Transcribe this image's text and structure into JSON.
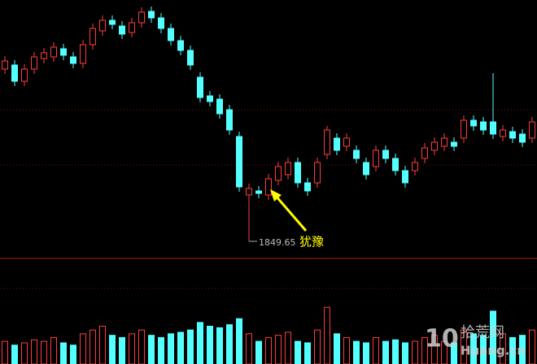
{
  "chart_data": {
    "type": "candlestick",
    "up_color": "#ff3c3c",
    "down_color": "#54ffff",
    "ylim": [
      1830,
      2295
    ],
    "volume_ylim": [
      0,
      100
    ],
    "open": [
      2167.5,
      2175,
      2145,
      2167.5,
      2187,
      2190,
      2205,
      2190,
      2178,
      2212.5,
      2238,
      2257.5,
      2247,
      2235,
      2253,
      2274,
      2262,
      2242.5,
      2220,
      2202,
      2152.5,
      2118,
      2112,
      2092.5,
      2043,
      1935,
      1942.5,
      1935,
      1962,
      1972.5,
      1995,
      1957.5,
      1957.5,
      2010,
      2040,
      2025,
      2017.5,
      1995,
      1987.5,
      2017.5,
      2002.5,
      1980,
      1980,
      2002.5,
      2017.5,
      2025,
      2032.5,
      2040,
      2073,
      2070,
      2070,
      2043,
      2052,
      2047.5,
      2040
    ],
    "high": [
      2191.5,
      2184,
      2176.5,
      2199,
      2206.5,
      2217,
      2214,
      2199,
      2221.5,
      2251.5,
      2266.5,
      2266.5,
      2256,
      2262,
      2281.5,
      2283,
      2271,
      2251.5,
      2229,
      2211,
      2161.5,
      2127,
      2121,
      2101.5,
      2052,
      1956,
      1951.5,
      1974,
      1996.5,
      2004,
      2004,
      1966.5,
      2004,
      2062.5,
      2049,
      2049,
      2026.5,
      2004,
      2026.5,
      2026.5,
      2011.5,
      1989,
      2004,
      2031,
      2041.5,
      2049,
      2041.5,
      2082,
      2082,
      2079,
      2160,
      2064,
      2061,
      2056.5,
      2079
    ],
    "low": [
      2158.5,
      2136,
      2136,
      2158.5,
      2178,
      2181,
      2184,
      2169,
      2169,
      2203.5,
      2229,
      2241,
      2223,
      2226,
      2244,
      2253,
      2233.5,
      2211,
      2193,
      2166,
      2106,
      2098.5,
      2076,
      2046,
      1941,
      1849.65,
      1929,
      1926,
      1953,
      1963.5,
      1948.5,
      1933.5,
      1948.5,
      2001,
      2008.5,
      2016,
      1993.5,
      1963.5,
      1978.5,
      1993.5,
      1971,
      1948.5,
      1971,
      1993.5,
      2008.5,
      2016,
      2016,
      2031,
      2053.5,
      2046,
      2038.5,
      2034,
      2031,
      2023.5,
      2031
    ],
    "close": [
      2182.5,
      2145,
      2167.5,
      2190,
      2197.5,
      2208,
      2193,
      2178,
      2212.5,
      2242.5,
      2257.5,
      2250,
      2232,
      2253,
      2272.5,
      2262,
      2242.5,
      2220,
      2202,
      2175,
      2115,
      2107.5,
      2085,
      2055,
      1950,
      1947,
      1938,
      1965,
      1987.5,
      1995,
      1957.5,
      1942.5,
      1995,
      2055,
      2017.5,
      2040,
      2002.5,
      1972.5,
      2017.5,
      2002.5,
      1980,
      1957.5,
      1995,
      2022,
      2032.5,
      2040,
      2025,
      2073,
      2062.5,
      2055,
      2047.5,
      2055,
      2040,
      2032.5,
      2070
    ],
    "volume": [
      30,
      25,
      28,
      32,
      30,
      35,
      28,
      25,
      40,
      45,
      50,
      38,
      35,
      40,
      45,
      38,
      35,
      40,
      42,
      45,
      55,
      50,
      48,
      52,
      60,
      40,
      30,
      35,
      38,
      42,
      30,
      28,
      45,
      75,
      40,
      35,
      30,
      28,
      35,
      30,
      32,
      28,
      30,
      35,
      38,
      30,
      28,
      45,
      40,
      38,
      70,
      40,
      35,
      38,
      45
    ],
    "annotation": "犹豫",
    "watermark": {
      "number": "10",
      "name": "拾荒网",
      "site": "Huang.cn"
    }
  }
}
